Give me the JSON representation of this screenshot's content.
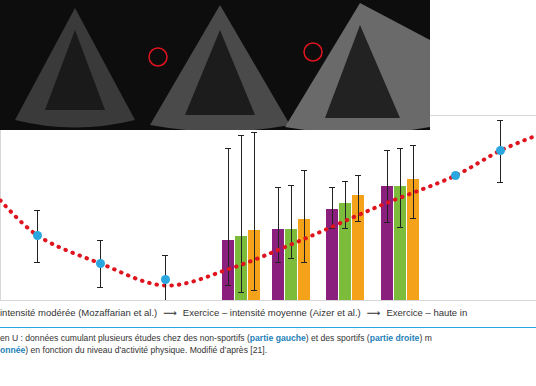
{
  "chart_data": {
    "type": "combo",
    "xlim": [
      0,
      536
    ],
    "ylim": [
      0,
      185
    ],
    "tick_labels": false,
    "grid": false,
    "series": [
      {
        "type": "bar",
        "color": "#8b1f7e",
        "x": [
          228,
          278,
          332,
          387
        ],
        "values": [
          60,
          71,
          91,
          114
        ],
        "error_low": [
          15,
          38,
          72,
          78
        ],
        "error_high": [
          152,
          113,
          113,
          150
        ]
      },
      {
        "type": "bar",
        "color": "#7dbb3a",
        "x": [
          241,
          291,
          345,
          400
        ],
        "values": [
          64,
          71,
          97,
          114
        ],
        "error_low": [
          8,
          42,
          72,
          73
        ],
        "error_high": [
          165,
          115,
          119,
          152
        ]
      },
      {
        "type": "bar",
        "color": "#f5a21b",
        "x": [
          254,
          304,
          358,
          413
        ],
        "values": [
          70,
          81,
          105,
          121
        ],
        "error_low": [
          10,
          38,
          79,
          82
        ],
        "error_high": [
          168,
          130,
          125,
          155
        ]
      },
      {
        "type": "line",
        "color": "#e0141e",
        "line_style": "dotted",
        "x": [
          0,
          37,
          100,
          165,
          230,
          300,
          380,
          455,
          500,
          536
        ],
        "values": [
          100,
          65,
          37,
          15,
          32,
          60,
          95,
          125,
          150,
          165
        ]
      },
      {
        "type": "scatter",
        "color": "#2aa7e0",
        "marker": "circle",
        "x": [
          37,
          100,
          165,
          455,
          500
        ],
        "values": [
          65,
          37,
          21,
          125,
          150
        ],
        "error_low": [
          38,
          13,
          0,
          null,
          118
        ],
        "error_high": [
          90,
          60,
          45,
          null,
          180
        ]
      }
    ],
    "x_labels": [
      "intensité modérée (Mozaffarian et al.)",
      "⟶",
      "Exercice – intensité moyenne (Aizer et al.)",
      "⟶",
      "Exercice – haute in"
    ],
    "caption": [
      [
        {
          "text": "en U : données cumulant plusieurs études chez des non-sportifs ("
        },
        {
          "text": "partie gauche",
          "bold": true
        },
        {
          "text": ") et des sportifs ("
        },
        {
          "text": "partie droite",
          "bold": true
        },
        {
          "text": ") m"
        }
      ],
      [
        {
          "text": "onnée",
          "bold": true
        },
        {
          "text": ") en fonction du niveau d’activité physique. Modifié d’après [21]."
        }
      ]
    ]
  }
}
